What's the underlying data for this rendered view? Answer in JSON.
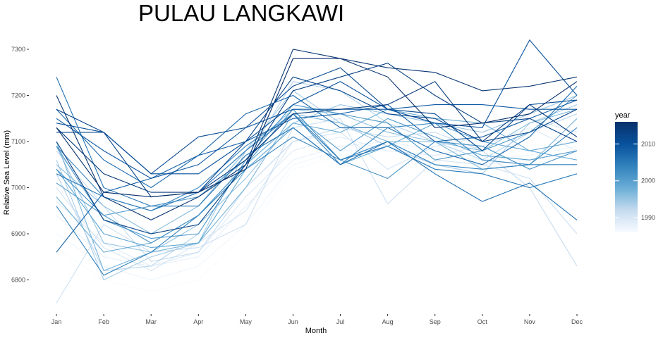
{
  "chart_data": {
    "type": "line",
    "title": "PULAU LANGKAWI",
    "xlabel": "Month",
    "ylabel": "Relative Sea Level (mm)",
    "categories": [
      "Jan",
      "Feb",
      "Mar",
      "Apr",
      "May",
      "Jun",
      "Jul",
      "Aug",
      "Sep",
      "Oct",
      "Nov",
      "Dec"
    ],
    "ylim": [
      6740,
      7320
    ],
    "yticks": [
      6800,
      6900,
      7000,
      7100,
      7200,
      7300
    ],
    "grid": false,
    "legend": {
      "title": "year",
      "position": "right",
      "type": "colorbar",
      "range": [
        1986,
        2016
      ],
      "ticks": [
        1990,
        2000,
        2010
      ],
      "low_color": "#f7fbff",
      "high_color": "#08306b"
    },
    "series": [
      {
        "year": 1986,
        "values": [
          6870,
          6800,
          6775,
          6800,
          6900,
          7040,
          7070,
          7090,
          7080,
          7070,
          7080,
          7100
        ]
      },
      {
        "year": 1987,
        "values": [
          6900,
          6830,
          6800,
          6830,
          6920,
          7050,
          7080,
          7080,
          7070,
          7060,
          7070,
          7090
        ]
      },
      {
        "year": 1988,
        "values": [
          6940,
          6850,
          6830,
          6850,
          6960,
          7060,
          7090,
          7100,
          7080,
          7050,
          7060,
          7080
        ]
      },
      {
        "year": 1989,
        "values": [
          6970,
          6880,
          6830,
          6860,
          6980,
          7080,
          7110,
          7080,
          7070,
          7090,
          7130,
          7080
        ]
      },
      {
        "year": 1990,
        "values": [
          7000,
          6870,
          6820,
          6880,
          6950,
          7100,
          7120,
          7040,
          7090,
          7110,
          7150,
          7120
        ]
      },
      {
        "year": 1991,
        "values": [
          6750,
          6920,
          6860,
          6870,
          6920,
          7130,
          7150,
          6965,
          7060,
          7050,
          7020,
          6900
        ]
      },
      {
        "year": 1992,
        "values": [
          7080,
          6960,
          6840,
          6860,
          7000,
          7100,
          7130,
          7110,
          7120,
          7080,
          7000,
          6830
        ]
      },
      {
        "year": 1993,
        "values": [
          7030,
          6820,
          6830,
          6900,
          7060,
          7230,
          7210,
          7140,
          7100,
          7060,
          7120,
          7160
        ]
      },
      {
        "year": 1994,
        "values": [
          7060,
          6800,
          6850,
          6880,
          7080,
          7210,
          7140,
          7090,
          7050,
          7030,
          7140,
          7180
        ]
      },
      {
        "year": 1995,
        "values": [
          7090,
          6880,
          6860,
          6920,
          7020,
          7140,
          7180,
          7160,
          7140,
          7120,
          7160,
          7200
        ]
      },
      {
        "year": 1996,
        "values": [
          7050,
          6960,
          6900,
          6960,
          7080,
          7170,
          7160,
          7120,
          7100,
          7080,
          7140,
          7170
        ]
      },
      {
        "year": 1997,
        "values": [
          7100,
          6820,
          6860,
          6880,
          7000,
          7160,
          7140,
          7100,
          7100,
          7040,
          7050,
          7150
        ]
      },
      {
        "year": 1998,
        "values": [
          6980,
          6860,
          6880,
          6940,
          7050,
          7140,
          7120,
          7170,
          7150,
          7140,
          7080,
          7060
        ]
      },
      {
        "year": 1999,
        "values": [
          7040,
          6900,
          6870,
          6880,
          7040,
          7130,
          7050,
          7090,
          7140,
          7100,
          7080,
          7100
        ]
      },
      {
        "year": 2000,
        "values": [
          7010,
          6940,
          6960,
          6980,
          7060,
          7160,
          7080,
          7150,
          7110,
          7070,
          7060,
          7080
        ]
      },
      {
        "year": 2001,
        "values": [
          7090,
          6930,
          6890,
          6900,
          7060,
          7180,
          7160,
          7140,
          7060,
          7080,
          7120,
          7200
        ]
      },
      {
        "year": 2002,
        "values": [
          7040,
          6940,
          6880,
          6940,
          7050,
          7170,
          7060,
          7020,
          7100,
          7090,
          7040,
          7080
        ]
      },
      {
        "year": 2003,
        "values": [
          7090,
          6980,
          6950,
          7000,
          7090,
          7160,
          7050,
          7130,
          7140,
          7060,
          7050,
          7130
        ]
      },
      {
        "year": 2004,
        "values": [
          6960,
          6810,
          6860,
          6940,
          7040,
          7110,
          7060,
          7100,
          7050,
          7040,
          7050,
          7050
        ]
      },
      {
        "year": 2005,
        "values": [
          7030,
          6980,
          6950,
          6990,
          7080,
          7160,
          7060,
          7090,
          7040,
          7030,
          7000,
          7030
        ]
      },
      {
        "year": 2006,
        "values": [
          7240,
          7000,
          6960,
          6960,
          7070,
          7130,
          7050,
          7100,
          7030,
          6970,
          7010,
          6930
        ]
      },
      {
        "year": 2007,
        "values": [
          7170,
          7060,
          7000,
          7070,
          7160,
          7200,
          7130,
          7130,
          7080,
          7050,
          7110,
          7220
        ]
      },
      {
        "year": 2008,
        "values": [
          6860,
          6990,
          7020,
          7070,
          7100,
          7150,
          7160,
          7180,
          7100,
          7110,
          7150,
          7190
        ]
      },
      {
        "year": 2009,
        "values": [
          7150,
          7080,
          7020,
          7050,
          7130,
          7170,
          7170,
          7170,
          7180,
          7180,
          7170,
          7170
        ]
      },
      {
        "year": 2010,
        "values": [
          7140,
          7120,
          7030,
          7030,
          7100,
          7180,
          7230,
          7170,
          7140,
          7130,
          7320,
          7200
        ]
      },
      {
        "year": 2011,
        "values": [
          7120,
          7120,
          7030,
          7110,
          7130,
          7220,
          7260,
          7170,
          7160,
          7080,
          7180,
          7190
        ]
      },
      {
        "year": 2012,
        "values": [
          7170,
          7120,
          6980,
          6990,
          7100,
          7240,
          7210,
          7160,
          7150,
          7100,
          7120,
          7170
        ]
      },
      {
        "year": 2013,
        "values": [
          7100,
          6930,
          6900,
          6920,
          7050,
          7210,
          7240,
          7270,
          7200,
          7140,
          7150,
          7100
        ]
      },
      {
        "year": 2014,
        "values": [
          7130,
          7030,
          6990,
          6990,
          7060,
          7160,
          7170,
          7180,
          7230,
          7100,
          7180,
          7110
        ]
      },
      {
        "year": 2015,
        "values": [
          7200,
          6980,
          6930,
          6980,
          7050,
          7300,
          7280,
          7260,
          7250,
          7210,
          7220,
          7240
        ]
      },
      {
        "year": 2016,
        "values": [
          7130,
          6990,
          6980,
          6990,
          7040,
          7280,
          7280,
          7240,
          7130,
          7140,
          7160,
          7230
        ]
      }
    ]
  }
}
